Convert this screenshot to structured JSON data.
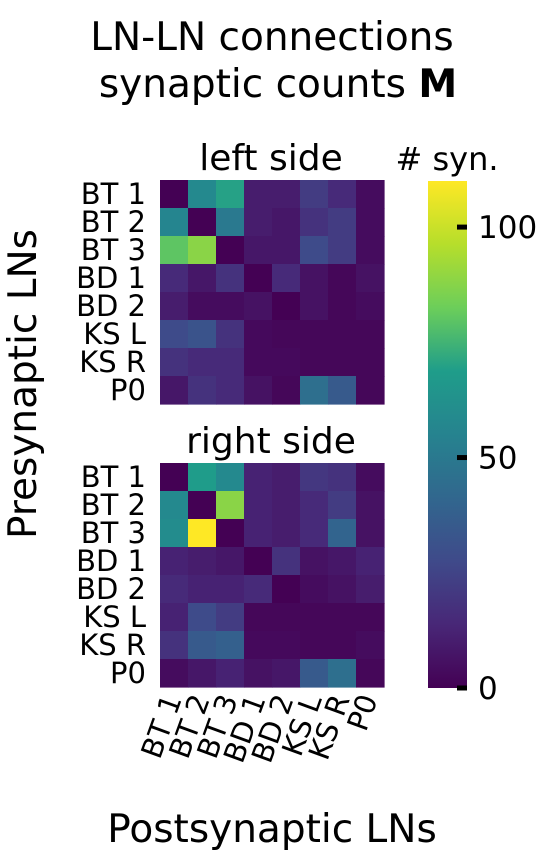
{
  "title_line1": "LN-LN connections",
  "title_line2_prefix": "synaptic counts ",
  "title_line2_bold": "M",
  "chart_data": [
    {
      "type": "heatmap",
      "title": "left side",
      "ylabel": "Presynaptic LNs",
      "xlabel": "Postsynaptic LNs",
      "rows": [
        "BT 1",
        "BT 2",
        "BT 3",
        "BD 1",
        "BD 2",
        "KS L",
        "KS R",
        "P0"
      ],
      "cols": [
        "BT 1",
        "BT 2",
        "BT 3",
        "BD 1",
        "BD 2",
        "KS L",
        "KS R",
        "P0"
      ],
      "values": [
        [
          0,
          58,
          70,
          10,
          10,
          22,
          15,
          4
        ],
        [
          56,
          0,
          50,
          10,
          8,
          18,
          22,
          4
        ],
        [
          80,
          88,
          0,
          8,
          8,
          28,
          22,
          4
        ],
        [
          15,
          8,
          18,
          0,
          15,
          6,
          2,
          6
        ],
        [
          10,
          4,
          4,
          6,
          0,
          6,
          2,
          4
        ],
        [
          28,
          32,
          18,
          3,
          2,
          2,
          2,
          2
        ],
        [
          18,
          15,
          15,
          3,
          3,
          2,
          2,
          2
        ],
        [
          8,
          18,
          15,
          6,
          2,
          45,
          35,
          2
        ]
      ]
    },
    {
      "type": "heatmap",
      "title": "right side",
      "ylabel": "Presynaptic LNs",
      "xlabel": "Postsynaptic LNs",
      "rows": [
        "BT 1",
        "BT 2",
        "BT 3",
        "BD 1",
        "BD 2",
        "KS L",
        "KS R",
        "P0"
      ],
      "cols": [
        "BT 1",
        "BT 2",
        "BT 3",
        "BD 1",
        "BD 2",
        "KS L",
        "KS R",
        "P0"
      ],
      "values": [
        [
          0,
          68,
          58,
          12,
          10,
          20,
          18,
          4
        ],
        [
          58,
          0,
          88,
          12,
          10,
          15,
          22,
          6
        ],
        [
          60,
          110,
          0,
          12,
          10,
          15,
          40,
          6
        ],
        [
          12,
          10,
          8,
          0,
          18,
          6,
          8,
          12
        ],
        [
          15,
          12,
          12,
          15,
          0,
          4,
          6,
          10
        ],
        [
          12,
          28,
          22,
          2,
          2,
          2,
          2,
          2
        ],
        [
          18,
          35,
          38,
          3,
          3,
          2,
          2,
          4
        ],
        [
          4,
          8,
          12,
          6,
          8,
          35,
          45,
          2
        ]
      ]
    }
  ],
  "colorbar": {
    "label": "# syn.",
    "min": 0,
    "max": 110,
    "ticks": [
      0,
      50,
      100
    ],
    "tick_labels": [
      "0",
      "50",
      "100"
    ],
    "colormap": "viridis"
  },
  "colors": {
    "viridis_stops": [
      "#440154",
      "#482777",
      "#3f4a8a",
      "#31678e",
      "#26838f",
      "#1f9d8a",
      "#6cce5a",
      "#b6de2b",
      "#fee825"
    ]
  }
}
